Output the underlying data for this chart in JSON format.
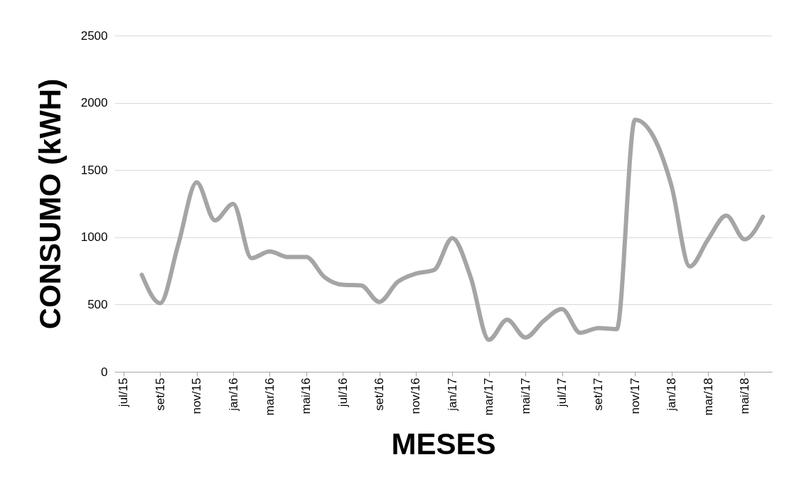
{
  "chart_data": {
    "type": "line",
    "xlabel": "MESES",
    "ylabel": "CONSUMO (kWH)",
    "categories": [
      "jul/15",
      null,
      "set/15",
      null,
      "nov/15",
      null,
      "jan/16",
      null,
      "mar/16",
      null,
      "mai/16",
      null,
      "jul/16",
      null,
      "set/16",
      null,
      "nov/16",
      null,
      "jan/17",
      null,
      "mar/17",
      null,
      "mai/17",
      null,
      "jul/17",
      null,
      "set/17",
      null,
      "nov/17",
      null,
      "jan/18",
      null,
      "mar/18",
      null,
      "mai/18",
      null
    ],
    "series": [
      {
        "color": "#a5a5a5",
        "values": [
          null,
          721,
          510,
          950,
          1408,
          1126,
          1249,
          845,
          894,
          853,
          853,
          704,
          647,
          642,
          519,
          668,
          730,
          757,
          994,
          704,
          238,
          387,
          255,
          378,
          466,
          290,
          325,
          317,
          1874,
          1751,
          1381,
          783,
          985,
          1162,
          985,
          1153
        ]
      }
    ],
    "ylim": [
      0,
      2500
    ],
    "yticks": [
      0,
      500,
      1000,
      1500,
      2000,
      2500
    ],
    "grid": "y",
    "marker": "none",
    "line_style": "solid"
  }
}
